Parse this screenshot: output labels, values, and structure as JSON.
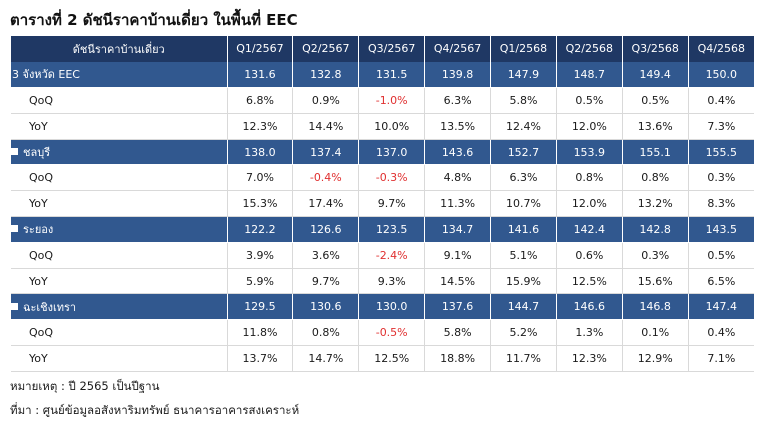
{
  "title": "ตารางที่ 2 ดัชนีราคาบ้านเดี่ยว ในพื้นที่ EEC",
  "table": {
    "header_label": "ดัชนีราคาบ้านเดี่ยว",
    "columns": [
      "Q1/2567",
      "Q2/2567",
      "Q3/2567",
      "Q4/2567",
      "Q1/2568",
      "Q2/2568",
      "Q3/2568",
      "Q4/2568"
    ],
    "groups": [
      {
        "name": "3 จังหวัด EEC",
        "bullet": false,
        "index": [
          "131.6",
          "132.8",
          "131.5",
          "139.8",
          "147.9",
          "148.7",
          "149.4",
          "150.0"
        ],
        "qoq_label": "QoQ",
        "qoq": [
          "6.8%",
          "0.9%",
          "-1.0%",
          "6.3%",
          "5.8%",
          "0.5%",
          "0.5%",
          "0.4%"
        ],
        "yoy_label": "YoY",
        "yoy": [
          "12.3%",
          "14.4%",
          "10.0%",
          "13.5%",
          "12.4%",
          "12.0%",
          "13.6%",
          "7.3%"
        ]
      },
      {
        "name": "ชลบุรี",
        "bullet": true,
        "index": [
          "138.0",
          "137.4",
          "137.0",
          "143.6",
          "152.7",
          "153.9",
          "155.1",
          "155.5"
        ],
        "qoq_label": "QoQ",
        "qoq": [
          "7.0%",
          "-0.4%",
          "-0.3%",
          "4.8%",
          "6.3%",
          "0.8%",
          "0.8%",
          "0.3%"
        ],
        "yoy_label": "YoY",
        "yoy": [
          "15.3%",
          "17.4%",
          "9.7%",
          "11.3%",
          "10.7%",
          "12.0%",
          "13.2%",
          "8.3%"
        ]
      },
      {
        "name": "ระยอง",
        "bullet": true,
        "index": [
          "122.2",
          "126.6",
          "123.5",
          "134.7",
          "141.6",
          "142.4",
          "142.8",
          "143.5"
        ],
        "qoq_label": "QoQ",
        "qoq": [
          "3.9%",
          "3.6%",
          "-2.4%",
          "9.1%",
          "5.1%",
          "0.6%",
          "0.3%",
          "0.5%"
        ],
        "yoy_label": "YoY",
        "yoy": [
          "5.9%",
          "9.7%",
          "9.3%",
          "14.5%",
          "15.9%",
          "12.5%",
          "15.6%",
          "6.5%"
        ]
      },
      {
        "name": "ฉะเชิงเทรา",
        "bullet": true,
        "index": [
          "129.5",
          "130.6",
          "130.0",
          "137.6",
          "144.7",
          "146.6",
          "146.8",
          "147.4"
        ],
        "qoq_label": "QoQ",
        "qoq": [
          "11.8%",
          "0.8%",
          "-0.5%",
          "5.8%",
          "5.2%",
          "1.3%",
          "0.1%",
          "0.4%"
        ],
        "yoy_label": "YoY",
        "yoy": [
          "13.7%",
          "14.7%",
          "12.5%",
          "18.8%",
          "11.7%",
          "12.3%",
          "12.9%",
          "7.1%"
        ]
      }
    ]
  },
  "colors": {
    "header_bg": "#1f3864",
    "region_bg": "#31588f",
    "negative": "#e03030"
  },
  "notes": {
    "remark": "หมายเหตุ : ปี 2565 เป็นปีฐาน",
    "source": "ที่มา : ศูนย์ข้อมูลอสังหาริมทรัพย์ ธนาคารอาคารสงเคราะห์"
  }
}
